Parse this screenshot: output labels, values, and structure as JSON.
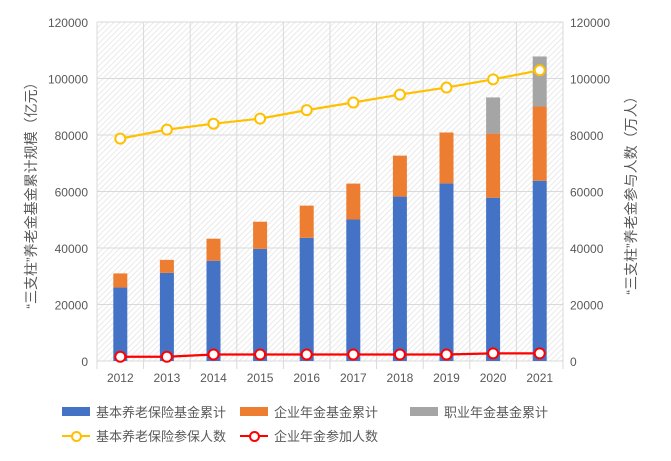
{
  "chart_data": {
    "type": "bar",
    "categories": [
      "2012",
      "2013",
      "2014",
      "2015",
      "2016",
      "2017",
      "2018",
      "2019",
      "2020",
      "2021"
    ],
    "ylabel": "“三支柱”养老金基金累计规模（亿元）",
    "y2label": "“三支柱”养老金参与人数（万人）",
    "ylim": [
      0,
      120000
    ],
    "y2lim": [
      0,
      120000
    ],
    "yticks": [
      "0",
      "20000",
      "40000",
      "60000",
      "80000",
      "100000",
      "120000"
    ],
    "grid": true,
    "legend_position": "bottom",
    "bar_series": [
      {
        "name": "基本养老保险基金累计",
        "color": "#4472C4",
        "stacked": true,
        "values": [
          26000,
          31200,
          35500,
          39700,
          43600,
          50100,
          58200,
          62900,
          57800,
          63800
        ]
      },
      {
        "name": "企业年金基金累计",
        "color": "#ED7D31",
        "stacked": true,
        "values": [
          5000,
          4600,
          7800,
          9600,
          11400,
          12700,
          14500,
          18000,
          22700,
          26300
        ]
      },
      {
        "name": "职业年金基金累计",
        "color": "#A5A5A5",
        "stacked": true,
        "values": [
          0,
          0,
          0,
          0,
          0,
          0,
          0,
          0,
          12800,
          17700
        ]
      }
    ],
    "line_series": [
      {
        "name": "基本养老保险参保人数",
        "color": "#FFC000",
        "axis": "right",
        "values": [
          78700,
          81900,
          84000,
          85800,
          88800,
          91500,
          94300,
          96800,
          99700,
          102900
        ]
      },
      {
        "name": "企业年金参加人数",
        "color": "#FF0000",
        "axis": "right",
        "values": [
          1500,
          1500,
          2300,
          2300,
          2300,
          2300,
          2300,
          2300,
          2700,
          2700
        ]
      }
    ]
  }
}
